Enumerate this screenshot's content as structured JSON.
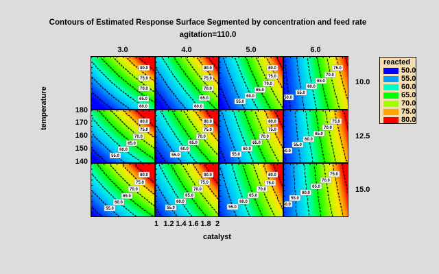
{
  "chart_data": {
    "type": "heatmap",
    "subtype": "contour-panel-grid",
    "title": "Contours of Estimated Response Surface Segmented by concentration and feed rate",
    "subtitle": "agitation=110.0",
    "xlabel": "catalyst",
    "ylabel": "temperature",
    "x_ticks": [
      "1",
      "1.2",
      "1.4",
      "1.6",
      "1.8",
      "2"
    ],
    "x_range": [
      1,
      2
    ],
    "y_ticks": [
      "140",
      "150",
      "160",
      "170",
      "180"
    ],
    "y_range": [
      140,
      180
    ],
    "column_factor": "concentration",
    "column_levels": [
      "3.0",
      "4.0",
      "5.0",
      "6.0"
    ],
    "row_factor": "feed rate",
    "row_levels": [
      "10.0",
      "12.5",
      "15.0"
    ],
    "legend": {
      "title": "reacted",
      "position": "right",
      "entries": [
        {
          "value": "50.0",
          "color": "#0000ff"
        },
        {
          "value": "55.0",
          "color": "#00a0ff"
        },
        {
          "value": "60.0",
          "color": "#00ffc8"
        },
        {
          "value": "65.0",
          "color": "#00ff00"
        },
        {
          "value": "70.0",
          "color": "#a0ff00"
        },
        {
          "value": "75.0",
          "color": "#ffa500"
        },
        {
          "value": "80.0",
          "color": "#ff0000"
        }
      ]
    },
    "contour_levels": [
      50,
      55,
      60,
      65,
      70,
      75,
      80
    ],
    "panels": [
      {
        "row": "10.0",
        "col": "3.0",
        "labels": [
          "60.0",
          "65.0",
          "70.0",
          "75.0",
          "80.0"
        ]
      },
      {
        "row": "10.0",
        "col": "4.0",
        "labels": [
          "60.0",
          "65.0",
          "70.0",
          "75.0",
          "80.0"
        ]
      },
      {
        "row": "10.0",
        "col": "5.0",
        "labels": [
          "55.0",
          "60.0",
          "65.0",
          "70.0",
          "75.0",
          "80.0"
        ]
      },
      {
        "row": "10.0",
        "col": "6.0",
        "labels": [
          "50.0",
          "55.0",
          "60.0",
          "65.0",
          "70.0",
          "75.0"
        ]
      },
      {
        "row": "12.5",
        "col": "3.0",
        "labels": [
          "55.0",
          "60.0",
          "65.0",
          "70.0",
          "75.0",
          "80.0"
        ]
      },
      {
        "row": "12.5",
        "col": "4.0",
        "labels": [
          "55.0",
          "60.0",
          "65.0",
          "70.0",
          "75.0",
          "80.0"
        ]
      },
      {
        "row": "12.5",
        "col": "5.0",
        "labels": [
          "55.0",
          "60.0",
          "65.0",
          "70.0",
          "75.0",
          "80.0"
        ]
      },
      {
        "row": "12.5",
        "col": "6.0",
        "labels": [
          "50.0",
          "55.0",
          "60.0",
          "65.0",
          "70.0",
          "75.0"
        ]
      },
      {
        "row": "15.0",
        "col": "3.0",
        "labels": [
          "55.0",
          "60.0",
          "65.0",
          "70.0",
          "75.0",
          "80.0"
        ]
      },
      {
        "row": "15.0",
        "col": "4.0",
        "labels": [
          "55.0",
          "60.0",
          "65.0",
          "70.0",
          "75.0",
          "80.0"
        ]
      },
      {
        "row": "15.0",
        "col": "5.0",
        "labels": [
          "55.0",
          "60.0",
          "65.0",
          "70.0",
          "75.0",
          "80.0"
        ]
      },
      {
        "row": "15.0",
        "col": "6.0",
        "labels": [
          "50.0",
          "55.0",
          "60.0",
          "65.0",
          "70.0",
          "75.0"
        ]
      }
    ],
    "grid": false
  }
}
